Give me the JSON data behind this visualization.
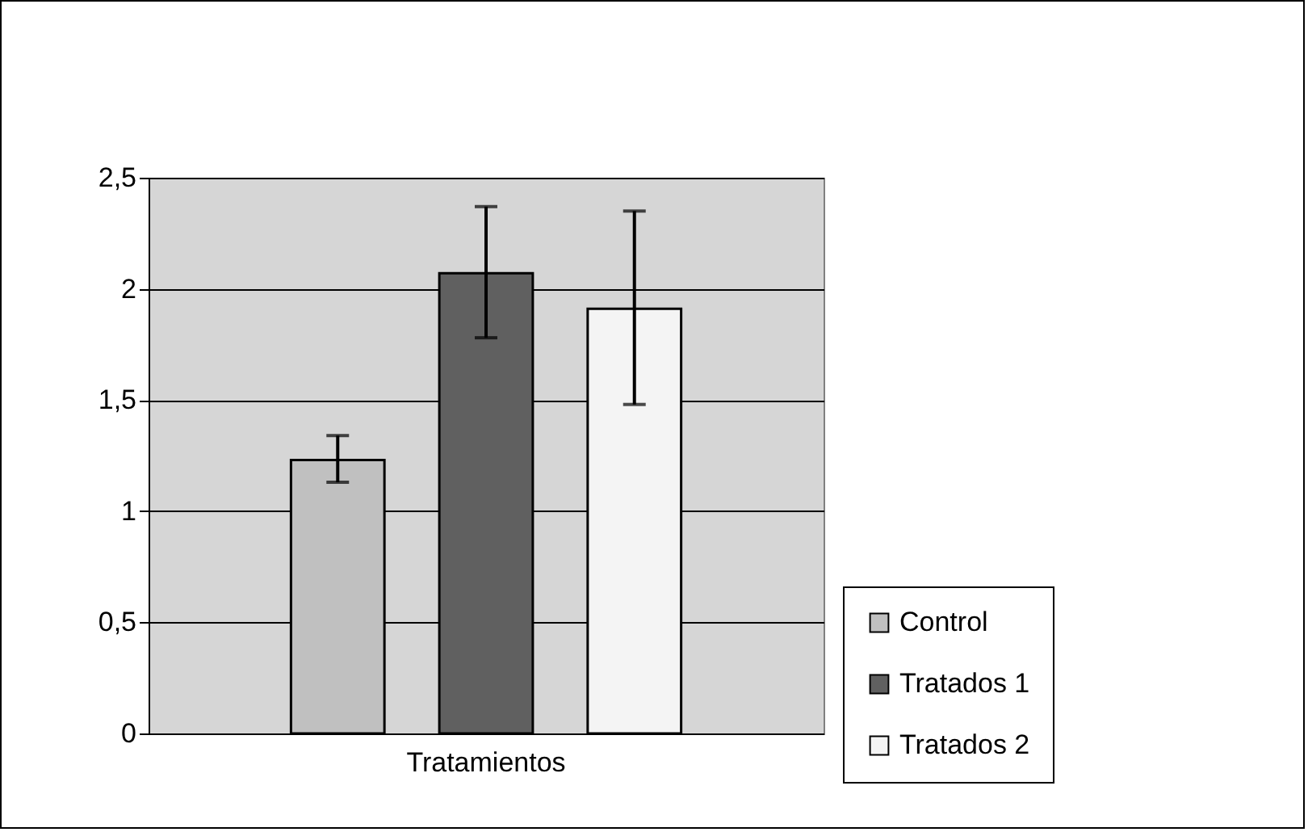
{
  "chart_data": {
    "type": "bar",
    "categories": [
      "Tratamientos"
    ],
    "series": [
      {
        "name": "Control",
        "color": "#c0c0c0",
        "values": [
          1.23
        ],
        "errors": [
          [
            1.13,
            1.34
          ]
        ]
      },
      {
        "name": "Tratados 1",
        "color": "#606060",
        "values": [
          2.07
        ],
        "errors": [
          [
            1.78,
            2.37
          ]
        ]
      },
      {
        "name": "Tratados 2",
        "color": "#f4f4f4",
        "values": [
          1.91
        ],
        "errors": [
          [
            1.48,
            2.35
          ]
        ]
      }
    ],
    "ylim": [
      0,
      2.5
    ],
    "yticks": [
      0,
      {
        "value": 0.5,
        "label": "0,5"
      },
      1,
      {
        "value": 1.5,
        "label": "1,5"
      },
      2,
      {
        "value": 2.5,
        "label": "2,5"
      }
    ],
    "grid": "y",
    "legend": "bottom right"
  }
}
